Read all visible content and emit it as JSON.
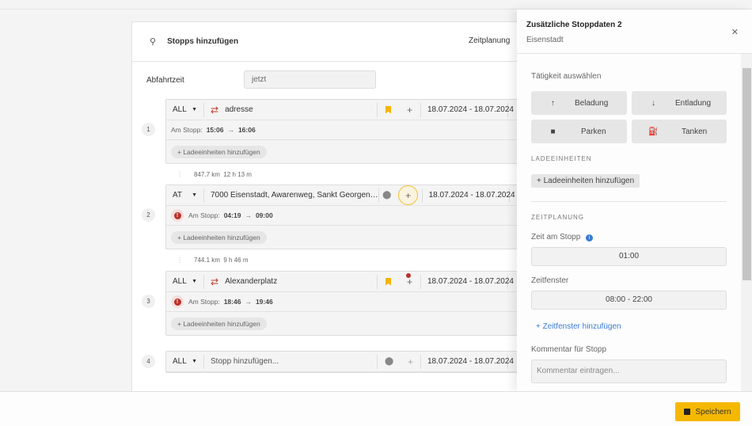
{
  "main": {
    "title": "Stopps hinzufügen",
    "tab": "Zeitplanung",
    "departure_label": "Abfahrtzeit",
    "departure_value": "jetzt",
    "stops": [
      {
        "num": "1",
        "country": "ALL",
        "address": "adresse",
        "icon": "swap-icon",
        "marker": "bookmark-icon",
        "date": "18.07.2024 - 18.07.2024",
        "at_stop": "Am Stopp:",
        "from": "15:06",
        "to": "16:06",
        "warning": false,
        "add_units": "Ladeeinheiten hinzufügen"
      },
      {
        "num": "2",
        "country": "AT",
        "address": "7000 Eisenstadt, Awarenweg, Sankt Georgen…",
        "icon": "",
        "marker": "map-pin-icon",
        "date": "18.07.2024 - 18.07.2024",
        "at_stop": "Am Stopp:",
        "from": "04:19",
        "to": "09:00",
        "warning": true,
        "add_units": "Ladeeinheiten hinzufügen"
      },
      {
        "num": "3",
        "country": "ALL",
        "address": "Alexanderplatz",
        "icon": "swap-icon",
        "marker": "bookmark-icon",
        "date": "18.07.2024 - 18.07.2024",
        "at_stop": "Am Stopp:",
        "from": "18:46",
        "to": "19:46",
        "warning": true,
        "add_units": "Ladeeinheiten hinzufügen"
      },
      {
        "num": "4",
        "country": "ALL",
        "address": "Stopp hinzufügen...",
        "marker": "map-pin-icon",
        "date": "18.07.2024 - 18.07.2024"
      }
    ],
    "legs": [
      {
        "distance": "847.7 km",
        "duration": "12 h 13 m"
      },
      {
        "distance": "744.1 km",
        "duration": "9 h 46 m"
      }
    ]
  },
  "panel": {
    "title": "Zusätzliche Stoppdaten 2",
    "subtitle": "Eisenstadt",
    "activity_label": "Tätigkeit auswählen",
    "activities": [
      {
        "label": "Beladung",
        "icon": "arrow-up-icon"
      },
      {
        "label": "Entladung",
        "icon": "arrow-down-icon"
      },
      {
        "label": "Parken",
        "icon": "parking-icon"
      },
      {
        "label": "Tanken",
        "icon": "fuel-icon"
      }
    ],
    "units_section": "LADEEINHEITEN",
    "add_units": "Ladeeinheiten hinzufügen",
    "schedule_section": "ZEITPLANUNG",
    "time_at_stop_label": "Zeit am Stopp",
    "time_at_stop": "01:00",
    "window_label": "Zeitfenster",
    "window": "08:00 - 22:00",
    "add_window": "Zeitfenster hinzufügen",
    "comment_label": "Kommentar für Stopp",
    "comment_placeholder": "Kommentar eintragen..."
  },
  "footer": {
    "save": "Speichern"
  },
  "colors": {
    "accent": "#f5b800",
    "warning": "#b83227",
    "link": "#3a7bd5"
  }
}
